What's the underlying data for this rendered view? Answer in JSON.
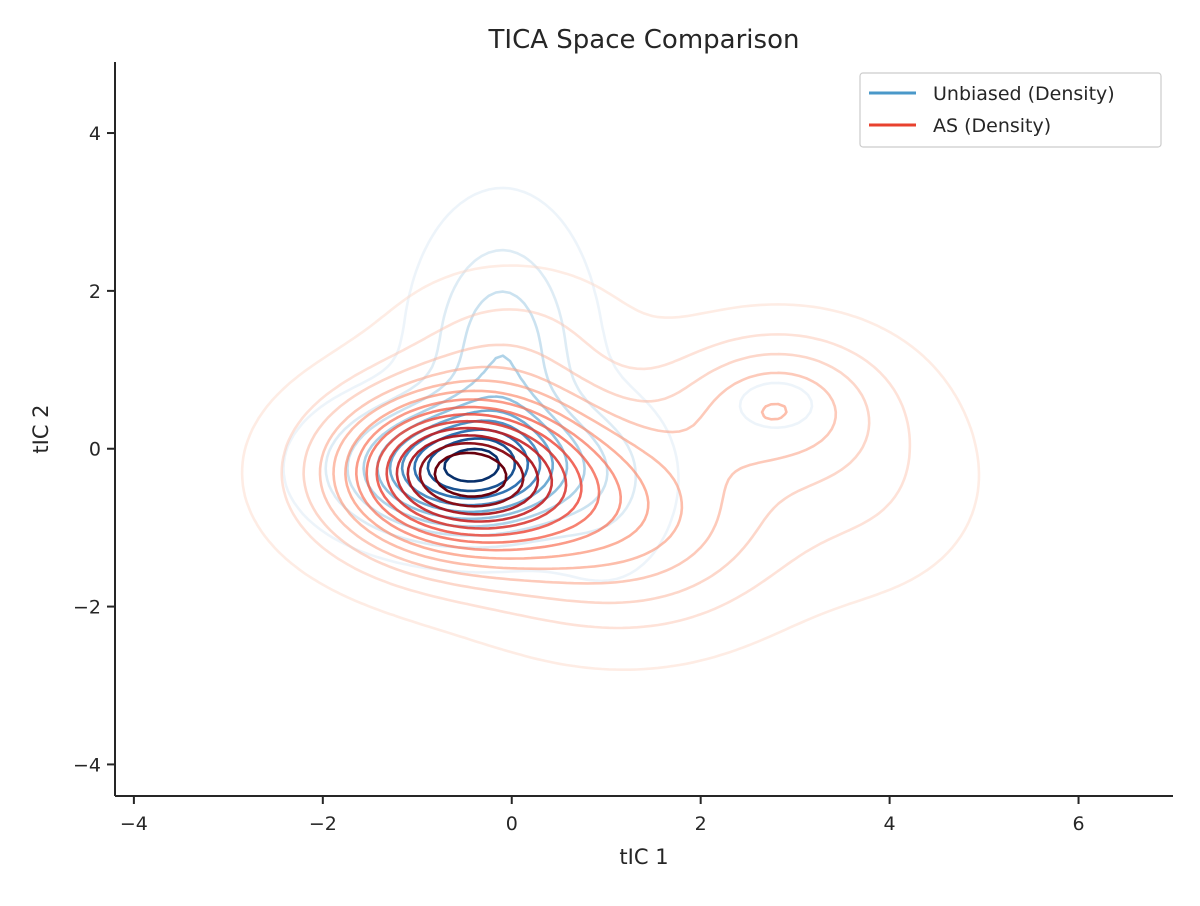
{
  "chart_data": {
    "type": "contour",
    "title": "TICA Space Comparison",
    "xlabel": "tIC 1",
    "ylabel": "tIC 2",
    "xlim": [
      -4.2,
      7.0
    ],
    "ylim": [
      -4.4,
      4.9
    ],
    "xticks": [
      -4,
      -2,
      0,
      2,
      4,
      6
    ],
    "yticks": [
      -4,
      -2,
      0,
      2,
      4
    ],
    "xtick_labels": [
      "−4",
      "−2",
      "0",
      "2",
      "4",
      "6"
    ],
    "ytick_labels": [
      "−4",
      "−2",
      "0",
      "2",
      "4"
    ],
    "grid": false,
    "legend_position": "top-right",
    "series": [
      {
        "name": "Unbiased (Density)",
        "color": "#4a98c9",
        "colormap": "Blues",
        "levels": 10,
        "components": [
          {
            "center": [
              -0.5,
              -0.25
            ],
            "sigma": [
              0.75,
              0.5
            ],
            "weight": 1.0
          },
          {
            "center": [
              -0.1,
              1.2
            ],
            "sigma": [
              0.5,
              1.0
            ],
            "weight": 0.35
          },
          {
            "center": [
              1.0,
              -0.5
            ],
            "sigma": [
              0.45,
              0.75
            ],
            "weight": 0.12
          },
          {
            "center": [
              2.8,
              0.55
            ],
            "sigma": [
              0.4,
              0.3
            ],
            "weight": 0.06
          }
        ]
      },
      {
        "name": "AS (Density)",
        "color": "#e8412e",
        "colormap": "Reds",
        "levels": 14,
        "components": [
          {
            "center": [
              -0.55,
              -0.3
            ],
            "sigma": [
              0.9,
              0.7
            ],
            "weight": 1.0
          },
          {
            "center": [
              1.2,
              -0.9
            ],
            "sigma": [
              1.1,
              0.9
            ],
            "weight": 0.35
          },
          {
            "center": [
              2.8,
              0.6
            ],
            "sigma": [
              0.75,
              0.6
            ],
            "weight": 0.28
          },
          {
            "center": [
              0.0,
              1.4
            ],
            "sigma": [
              0.8,
              0.6
            ],
            "weight": 0.12
          },
          {
            "center": [
              3.8,
              -0.4
            ],
            "sigma": [
              0.8,
              0.9
            ],
            "weight": 0.1
          }
        ]
      }
    ]
  }
}
